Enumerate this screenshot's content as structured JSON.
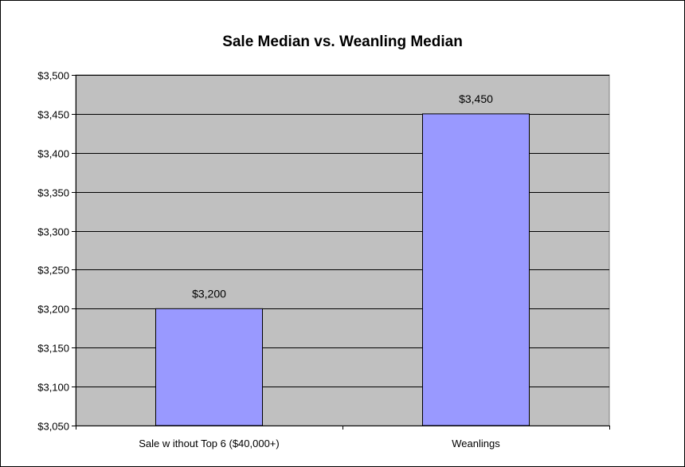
{
  "chart_data": {
    "type": "bar",
    "title": "Sale Median vs. Weanling Median",
    "categories": [
      "Sale w ithout Top 6 ($40,000+)",
      "Weanlings"
    ],
    "values": [
      3200,
      3450
    ],
    "data_labels": [
      "$3,200",
      "$3,450"
    ],
    "xlabel": "",
    "ylabel": "",
    "ylim": [
      3050,
      3500
    ],
    "yticks": [
      3050,
      3100,
      3150,
      3200,
      3250,
      3300,
      3350,
      3400,
      3450,
      3500
    ],
    "ytick_labels": [
      "$3,050",
      "$3,100",
      "$3,150",
      "$3,200",
      "$3,250",
      "$3,300",
      "$3,350",
      "$3,400",
      "$3,450",
      "$3,500"
    ],
    "grid": true,
    "legend": "none",
    "colors": {
      "bar_fill": "#9999ff",
      "bar_stroke": "#000000",
      "plot_background": "#c0c0c0",
      "gridline": "#000000"
    }
  }
}
